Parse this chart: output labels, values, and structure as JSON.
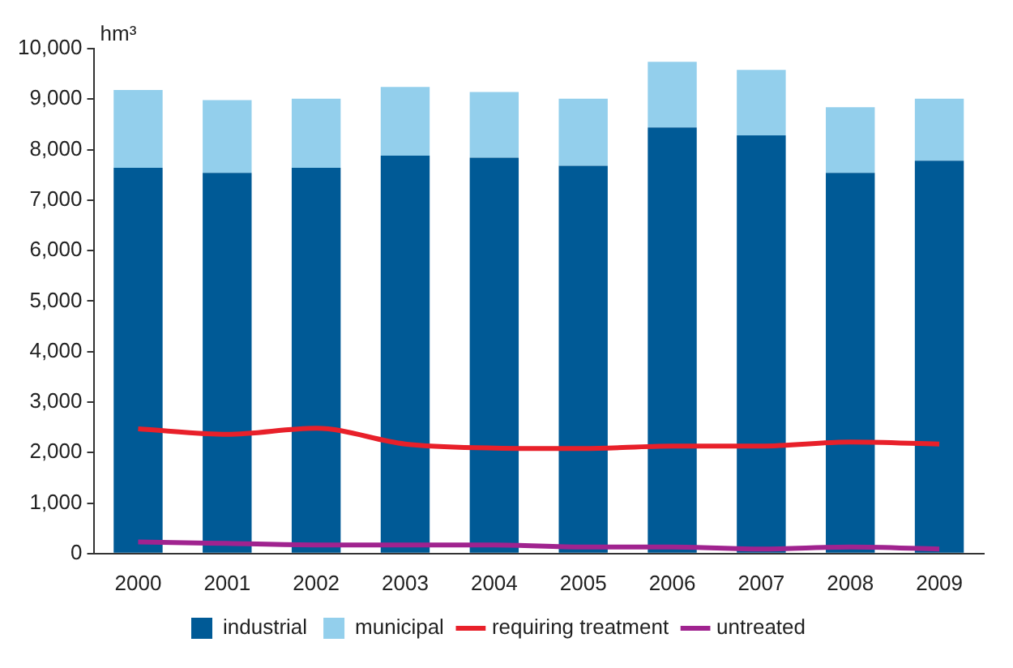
{
  "chart_data": {
    "type": "bar",
    "ylabel": "hm³",
    "stacked": true,
    "grid": false,
    "legend": "bottom",
    "marker": "none",
    "categories": [
      "2000",
      "2001",
      "2002",
      "2003",
      "2004",
      "2005",
      "2006",
      "2007",
      "2008",
      "2009"
    ],
    "series": [
      {
        "name": "industrial",
        "color": "#005a96",
        "values": [
          7640,
          7540,
          7640,
          7880,
          7840,
          7680,
          8440,
          8280,
          7540,
          7780
        ]
      },
      {
        "name": "municipal",
        "color": "#93cfec",
        "values": [
          1540,
          1440,
          1370,
          1360,
          1300,
          1330,
          1300,
          1300,
          1300,
          1230
        ]
      },
      {
        "name": "requiring treatment",
        "type": "line",
        "color": "#e8202a",
        "values": [
          2470,
          2360,
          2480,
          2170,
          2090,
          2080,
          2130,
          2130,
          2210,
          2170
        ]
      },
      {
        "name": "untreated",
        "type": "line",
        "color": "#a0238f",
        "values": [
          230,
          200,
          170,
          170,
          170,
          130,
          130,
          90,
          130,
          90
        ]
      }
    ],
    "ylim": [
      0,
      10000
    ],
    "yticks": [
      0,
      {
        "value": 1000,
        "label": "1,000"
      },
      {
        "value": 2000,
        "label": "2,000"
      },
      {
        "value": 3000,
        "label": "3,000"
      },
      {
        "value": 4000,
        "label": "4,000"
      },
      {
        "value": 5000,
        "label": "5,000"
      },
      {
        "value": 6000,
        "label": "6,000"
      },
      {
        "value": 7000,
        "label": "7,000"
      },
      {
        "value": 8000,
        "label": "8,000"
      },
      {
        "value": 9000,
        "label": "9,000"
      },
      {
        "value": 10000,
        "label": "10,000"
      }
    ]
  }
}
